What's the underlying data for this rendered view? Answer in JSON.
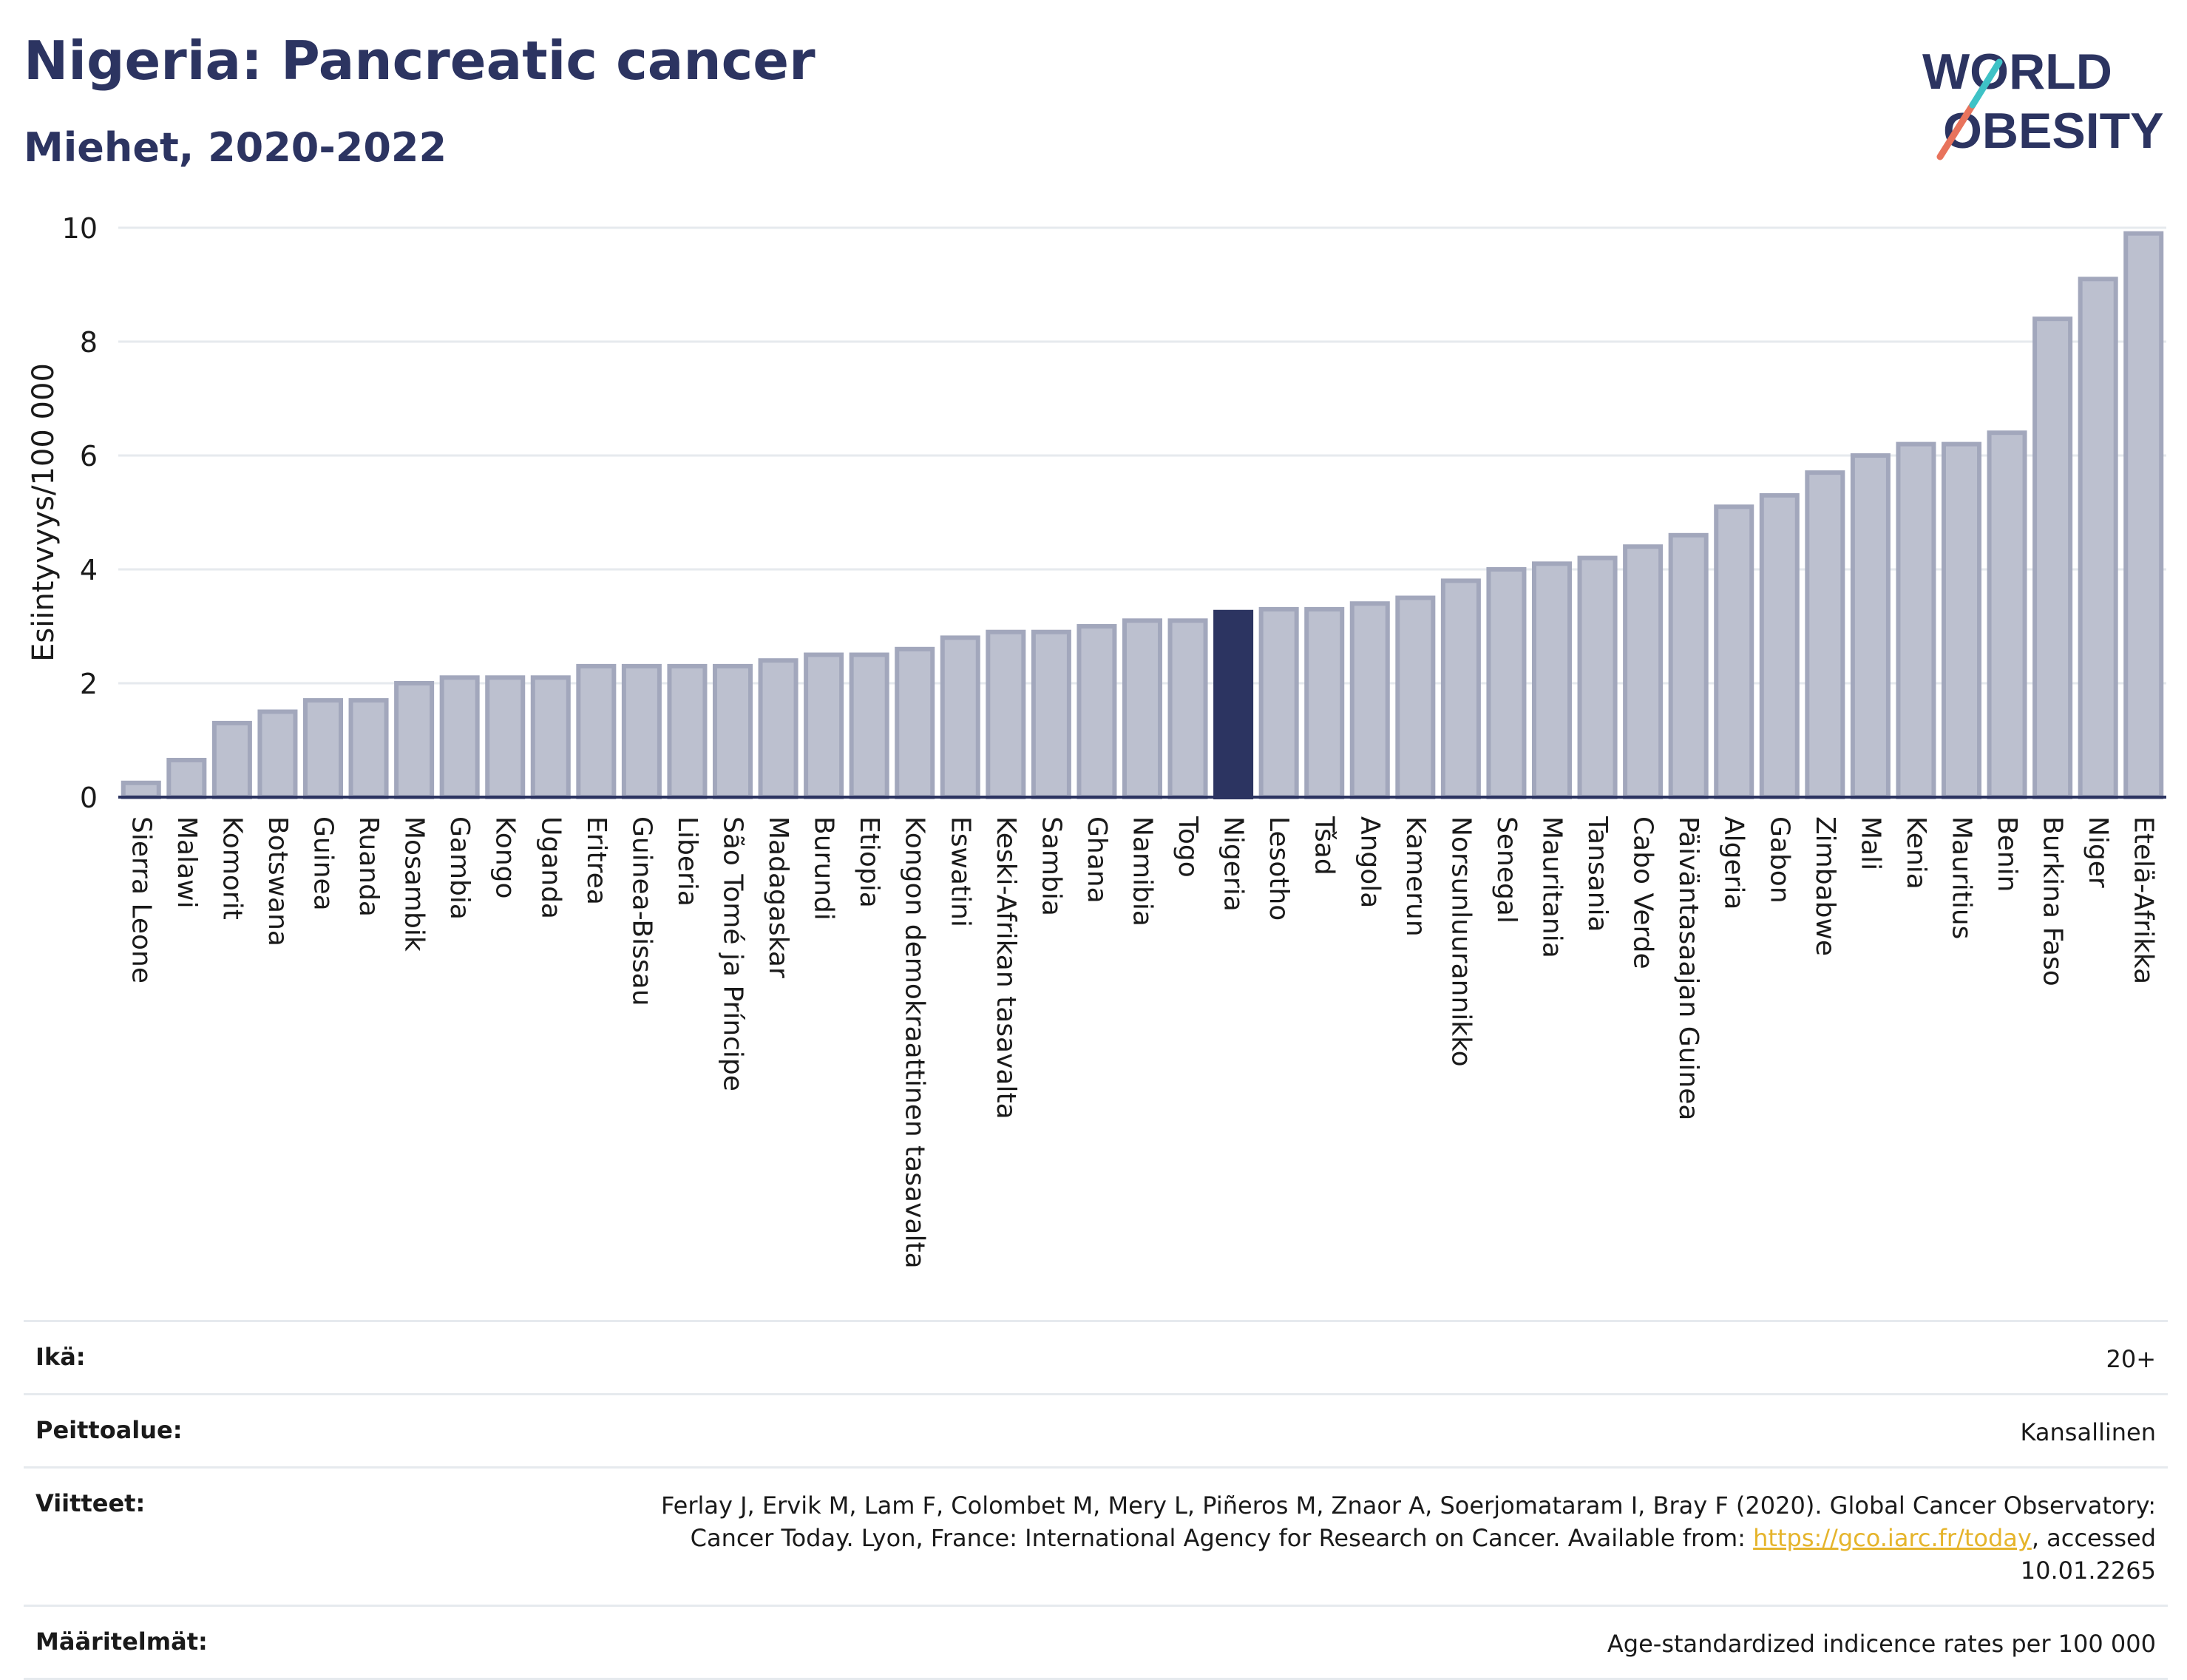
{
  "header": {
    "title": "Nigeria: Pancreatic cancer",
    "subtitle": "Miehet, 2020-2022"
  },
  "logo": {
    "line1": "WORLD",
    "line2": "OBESITY",
    "colors": {
      "text": "#2c3461",
      "slash_red": "#e8735c",
      "slash_teal": "#3ec2c6"
    }
  },
  "chart_data": {
    "type": "bar",
    "ylabel": "Esiintyvyys/100 000",
    "xlabel": "",
    "ylim": [
      0,
      10
    ],
    "yticks": [
      0,
      2,
      4,
      6,
      8,
      10
    ],
    "highlight": "Nigeria",
    "colors": {
      "bar": "#bcc0cf",
      "bar_edge": "#a2a7bc",
      "highlight": "#2c3461",
      "grid": "#e6eaee",
      "axis": "#2c3461"
    },
    "categories": [
      "Sierra Leone",
      "Malawi",
      "Komorit",
      "Botswana",
      "Guinea",
      "Ruanda",
      "Mosambik",
      "Gambia",
      "Kongo",
      "Uganda",
      "Eritrea",
      "Guinea-Bissau",
      "Liberia",
      "São Tomé ja Príncipe",
      "Madagaskar",
      "Burundi",
      "Etiopia",
      "Kongon demokraattinen tasavalta",
      "Eswatini",
      "Keski-Afrikan tasavalta",
      "Sambia",
      "Ghana",
      "Namibia",
      "Togo",
      "Nigeria",
      "Lesotho",
      "Tšad",
      "Angola",
      "Kamerun",
      "Norsunluurannikko",
      "Senegal",
      "Mauritania",
      "Tansania",
      "Cabo Verde",
      "Päiväntasaajan Guinea",
      "Algeria",
      "Gabon",
      "Zimbabwe",
      "Mali",
      "Kenia",
      "Mauritius",
      "Benin",
      "Burkina Faso",
      "Niger",
      "Etelä-Afrikka"
    ],
    "values": [
      0.25,
      0.65,
      1.3,
      1.5,
      1.7,
      1.7,
      2.0,
      2.1,
      2.1,
      2.1,
      2.3,
      2.3,
      2.3,
      2.3,
      2.4,
      2.5,
      2.5,
      2.6,
      2.8,
      2.9,
      2.9,
      3.0,
      3.1,
      3.1,
      3.25,
      3.3,
      3.3,
      3.4,
      3.5,
      3.8,
      4.0,
      4.1,
      4.2,
      4.4,
      4.6,
      5.1,
      5.3,
      5.7,
      6.0,
      6.2,
      6.2,
      6.4,
      8.4,
      9.1,
      9.9
    ]
  },
  "info_table": [
    {
      "key": "Ikä:",
      "value": "20+"
    },
    {
      "key": "Peittoalue:",
      "value": "Kansallinen"
    },
    {
      "key": "Viitteet:",
      "value_pre": "Ferlay J, Ervik M, Lam F, Colombet M, Mery L, Piñeros M, Znaor A, Soerjomataram I, Bray F (2020). Global Cancer Observatory: Cancer Today. Lyon, France: International Agency for Research on Cancer. Available from: ",
      "link": "https://gco.iarc.fr/today",
      "value_post": ", accessed 10.01.2265"
    },
    {
      "key": "Määritelmät:",
      "value": "Age-standardized indicence rates per 100 000"
    }
  ]
}
